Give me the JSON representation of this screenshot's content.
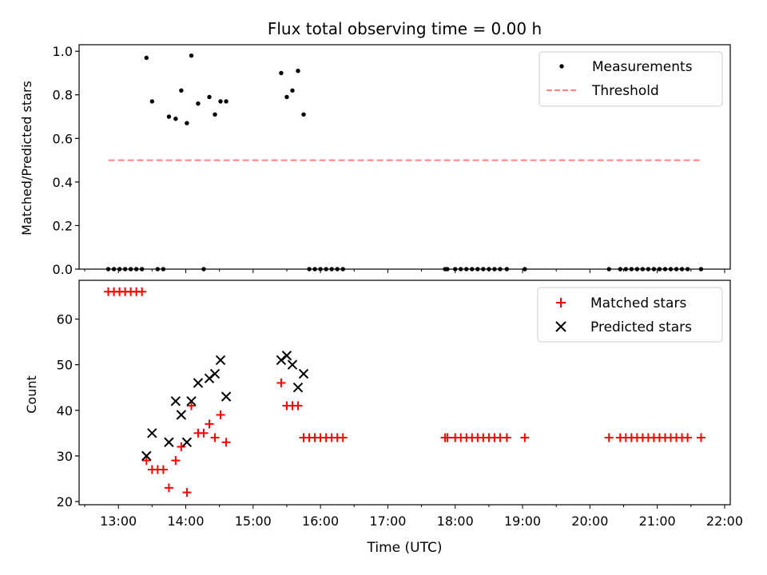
{
  "chart_data": [
    {
      "type": "scatter",
      "title": "Flux total observing time = 0.00 h",
      "xlabel": "",
      "ylabel": "Matched/Predicted stars",
      "xlim": [
        "12:25",
        "22:05"
      ],
      "ylim": [
        0,
        1.03
      ],
      "yticks": [
        0.0,
        0.2,
        0.4,
        0.6,
        0.8,
        1.0
      ],
      "ytick_labels": [
        "0.0",
        "0.2",
        "0.4",
        "0.6",
        "0.8",
        "1.0"
      ],
      "xticks": [
        "13:00",
        "14:00",
        "15:00",
        "16:00",
        "17:00",
        "18:00",
        "19:00",
        "20:00",
        "21:00",
        "22:00"
      ],
      "legend_position": "top-right",
      "grid": false,
      "series": [
        {
          "name": "Measurements",
          "marker": "dot",
          "color": "#000000",
          "points": [
            [
              "12:51",
              0.0
            ],
            [
              "12:56",
              0.0
            ],
            [
              "13:01",
              0.0
            ],
            [
              "13:06",
              0.0
            ],
            [
              "13:11",
              0.0
            ],
            [
              "13:16",
              0.0
            ],
            [
              "13:21",
              0.0
            ],
            [
              "13:25",
              0.97
            ],
            [
              "13:30",
              0.77
            ],
            [
              "13:35",
              0.0
            ],
            [
              "13:40",
              0.0
            ],
            [
              "13:45",
              0.7
            ],
            [
              "13:51",
              0.69
            ],
            [
              "13:56",
              0.82
            ],
            [
              "14:01",
              0.67
            ],
            [
              "14:05",
              0.98
            ],
            [
              "14:11",
              0.76
            ],
            [
              "14:16",
              0.0
            ],
            [
              "14:21",
              0.79
            ],
            [
              "14:26",
              0.71
            ],
            [
              "14:31",
              0.77
            ],
            [
              "14:36",
              0.77
            ],
            [
              "15:25",
              0.9
            ],
            [
              "15:30",
              0.79
            ],
            [
              "15:35",
              0.82
            ],
            [
              "15:40",
              0.91
            ],
            [
              "15:45",
              0.71
            ],
            [
              "15:50",
              0.0
            ],
            [
              "15:55",
              0.0
            ],
            [
              "16:00",
              0.0
            ],
            [
              "16:05",
              0.0
            ],
            [
              "16:10",
              0.0
            ],
            [
              "16:15",
              0.0
            ],
            [
              "16:20",
              0.0
            ],
            [
              "17:51",
              0.0
            ],
            [
              "17:53",
              0.0
            ],
            [
              "18:00",
              0.0
            ],
            [
              "18:05",
              0.0
            ],
            [
              "18:10",
              0.0
            ],
            [
              "18:15",
              0.0
            ],
            [
              "18:20",
              0.0
            ],
            [
              "18:25",
              0.0
            ],
            [
              "18:30",
              0.0
            ],
            [
              "18:35",
              0.0
            ],
            [
              "18:40",
              0.0
            ],
            [
              "18:46",
              0.0
            ],
            [
              "19:02",
              0.0
            ],
            [
              "20:17",
              0.0
            ],
            [
              "20:27",
              0.0
            ],
            [
              "20:32",
              0.0
            ],
            [
              "20:37",
              0.0
            ],
            [
              "20:42",
              0.0
            ],
            [
              "20:47",
              0.0
            ],
            [
              "20:52",
              0.0
            ],
            [
              "20:57",
              0.0
            ],
            [
              "21:02",
              0.0
            ],
            [
              "21:07",
              0.0
            ],
            [
              "21:12",
              0.0
            ],
            [
              "21:17",
              0.0
            ],
            [
              "21:22",
              0.0
            ],
            [
              "21:27",
              0.0
            ],
            [
              "21:39",
              0.0
            ]
          ]
        },
        {
          "name": "Threshold",
          "marker": "dashed-line",
          "color": "#ff8080",
          "points": [
            [
              "12:51",
              0.5
            ],
            [
              "21:39",
              0.5
            ]
          ]
        }
      ]
    },
    {
      "type": "scatter",
      "title": "",
      "xlabel": "Time (UTC)",
      "ylabel": "Count",
      "xlim": [
        "12:25",
        "22:05"
      ],
      "ylim": [
        19.3,
        68.5
      ],
      "yticks": [
        20,
        30,
        40,
        50,
        60
      ],
      "ytick_labels": [
        "20",
        "30",
        "40",
        "50",
        "60"
      ],
      "xticks": [
        "13:00",
        "14:00",
        "15:00",
        "16:00",
        "17:00",
        "18:00",
        "19:00",
        "20:00",
        "21:00",
        "22:00"
      ],
      "legend_position": "top-right",
      "grid": false,
      "series": [
        {
          "name": "Matched stars",
          "marker": "plus",
          "color": "#ff0000",
          "points": [
            [
              "12:51",
              66
            ],
            [
              "12:56",
              66
            ],
            [
              "13:01",
              66
            ],
            [
              "13:06",
              66
            ],
            [
              "13:11",
              66
            ],
            [
              "13:16",
              66
            ],
            [
              "13:21",
              66
            ],
            [
              "13:25",
              29
            ],
            [
              "13:30",
              27
            ],
            [
              "13:35",
              27
            ],
            [
              "13:40",
              27
            ],
            [
              "13:45",
              23
            ],
            [
              "13:51",
              29
            ],
            [
              "13:56",
              32
            ],
            [
              "14:01",
              22
            ],
            [
              "14:05",
              41
            ],
            [
              "14:11",
              35
            ],
            [
              "14:16",
              35
            ],
            [
              "14:21",
              37
            ],
            [
              "14:26",
              34
            ],
            [
              "14:31",
              39
            ],
            [
              "14:36",
              33
            ],
            [
              "15:25",
              46
            ],
            [
              "15:30",
              41
            ],
            [
              "15:35",
              41
            ],
            [
              "15:40",
              41
            ],
            [
              "15:45",
              34
            ],
            [
              "15:50",
              34
            ],
            [
              "15:55",
              34
            ],
            [
              "16:00",
              34
            ],
            [
              "16:05",
              34
            ],
            [
              "16:10",
              34
            ],
            [
              "16:15",
              34
            ],
            [
              "16:20",
              34
            ],
            [
              "17:51",
              34
            ],
            [
              "17:53",
              34
            ],
            [
              "18:00",
              34
            ],
            [
              "18:05",
              34
            ],
            [
              "18:10",
              34
            ],
            [
              "18:15",
              34
            ],
            [
              "18:20",
              34
            ],
            [
              "18:25",
              34
            ],
            [
              "18:30",
              34
            ],
            [
              "18:35",
              34
            ],
            [
              "18:40",
              34
            ],
            [
              "18:46",
              34
            ],
            [
              "19:02",
              34
            ],
            [
              "20:17",
              34
            ],
            [
              "20:27",
              34
            ],
            [
              "20:32",
              34
            ],
            [
              "20:37",
              34
            ],
            [
              "20:42",
              34
            ],
            [
              "20:47",
              34
            ],
            [
              "20:52",
              34
            ],
            [
              "20:57",
              34
            ],
            [
              "21:02",
              34
            ],
            [
              "21:07",
              34
            ],
            [
              "21:12",
              34
            ],
            [
              "21:17",
              34
            ],
            [
              "21:22",
              34
            ],
            [
              "21:27",
              34
            ],
            [
              "21:39",
              34
            ]
          ]
        },
        {
          "name": "Predicted stars",
          "marker": "x",
          "color": "#000000",
          "points": [
            [
              "13:25",
              30
            ],
            [
              "13:30",
              35
            ],
            [
              "13:45",
              33
            ],
            [
              "13:51",
              42
            ],
            [
              "13:56",
              39
            ],
            [
              "14:01",
              33
            ],
            [
              "14:05",
              42
            ],
            [
              "14:11",
              46
            ],
            [
              "14:21",
              47
            ],
            [
              "14:26",
              48
            ],
            [
              "14:31",
              51
            ],
            [
              "14:36",
              43
            ],
            [
              "15:25",
              51
            ],
            [
              "15:30",
              52
            ],
            [
              "15:35",
              50
            ],
            [
              "15:40",
              45
            ],
            [
              "15:45",
              48
            ]
          ]
        }
      ]
    }
  ]
}
